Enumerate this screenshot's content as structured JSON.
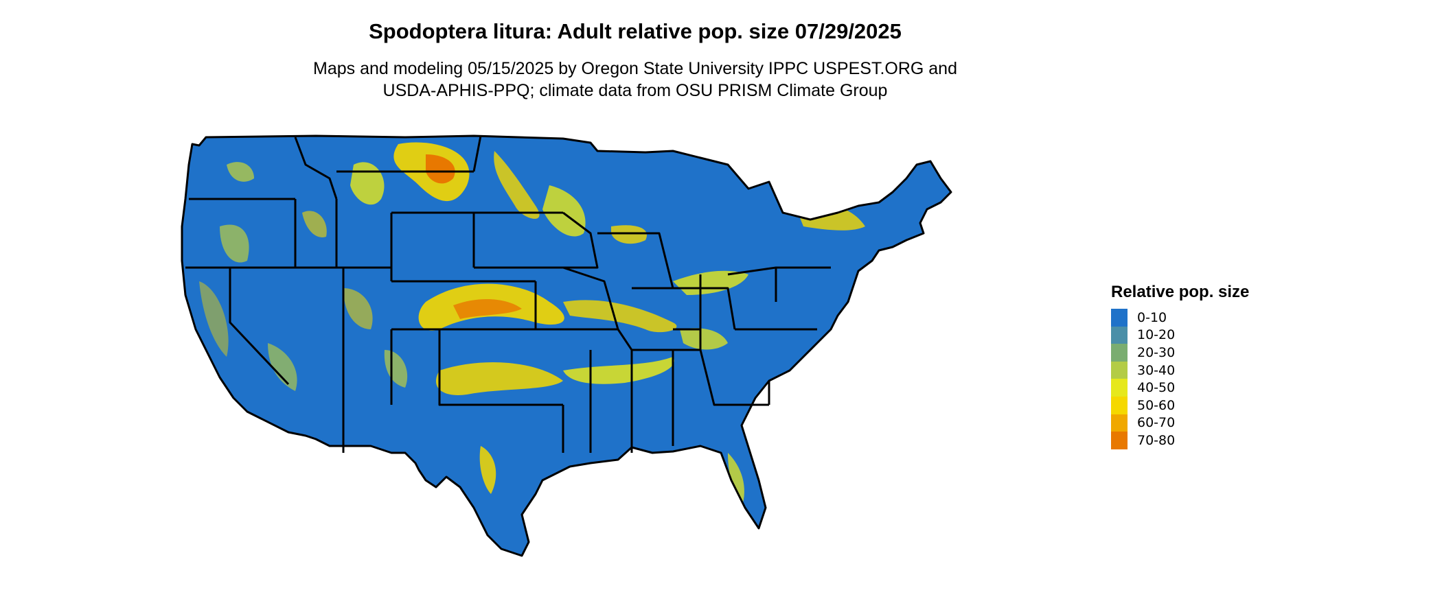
{
  "title": "Spodoptera litura: Adult relative pop. size 07/29/2025",
  "subtitle_line1": "Maps and modeling 05/15/2025 by Oregon State University IPPC USPEST.ORG and",
  "subtitle_line2": "USDA-APHIS-PPQ; climate data from OSU PRISM Climate Group",
  "map": {
    "region": "Contiguous United States",
    "base_fill": "#1f72c9",
    "border_color": "#000000"
  },
  "legend": {
    "title": "Relative pop. size",
    "items": [
      {
        "label": "0-10",
        "color": "#1f72c9"
      },
      {
        "label": "10-20",
        "color": "#4a8fa8"
      },
      {
        "label": "20-30",
        "color": "#7aad70"
      },
      {
        "label": "30-40",
        "color": "#b3cc46"
      },
      {
        "label": "40-50",
        "color": "#e6e81c"
      },
      {
        "label": "50-60",
        "color": "#f5d800"
      },
      {
        "label": "60-70",
        "color": "#f0a800"
      },
      {
        "label": "70-80",
        "color": "#e87800"
      }
    ]
  }
}
